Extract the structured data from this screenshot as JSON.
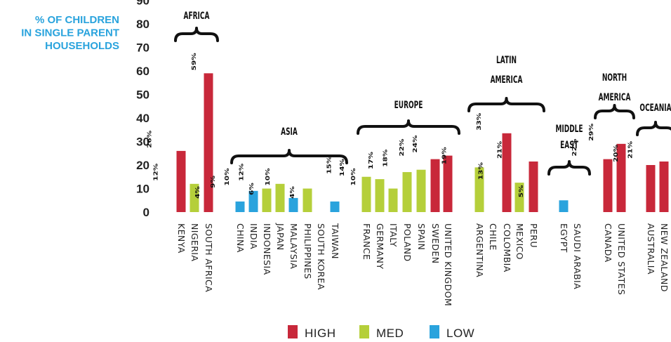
{
  "chart_data": {
    "type": "bar",
    "ylabel": [
      "% OF CHILDREN",
      "IN SINGLE PARENT",
      "HOUSEHOLDS"
    ],
    "ylim": [
      0,
      90
    ],
    "yticks": [
      0,
      10,
      20,
      30,
      40,
      50,
      60,
      70,
      80,
      90
    ],
    "grid": false,
    "legend_position": "bottom",
    "colors": {
      "HIGH": "#c8283a",
      "MED": "#b5cf3a",
      "LOW": "#2aa3dd"
    },
    "legend": [
      {
        "key": "HIGH",
        "label": "HIGH"
      },
      {
        "key": "MED",
        "label": "MED"
      },
      {
        "key": "LOW",
        "label": "LOW"
      }
    ],
    "regions": [
      {
        "name": [
          "AFRICA"
        ],
        "countries": [
          {
            "name": "KENYA",
            "value": 26,
            "label": "26%",
            "level": "HIGH"
          },
          {
            "name": "NIGERIA",
            "value": 12,
            "label": "12%",
            "level": "MED"
          },
          {
            "name": "SOUTH AFRICA",
            "value": 59,
            "label": "59%",
            "level": "HIGH"
          }
        ]
      },
      {
        "name": [
          "ASIA"
        ],
        "countries": [
          {
            "name": "CHINA",
            "value": 4.5,
            "label": "4%",
            "level": "LOW"
          },
          {
            "name": "INDIA",
            "value": 9,
            "label": "9%",
            "level": "LOW"
          },
          {
            "name": "INDONESIA",
            "value": 10,
            "label": "10%",
            "level": "MED"
          },
          {
            "name": "JAPAN",
            "value": 12,
            "label": "12%",
            "level": "MED"
          },
          {
            "name": "MALAYSIA",
            "value": 6,
            "label": "6%",
            "level": "LOW"
          },
          {
            "name": "PHILIPPINES",
            "value": 10,
            "label": "10%",
            "level": "MED"
          },
          {
            "name": "SOUTH KOREA",
            "value": null,
            "label": "",
            "level": ""
          },
          {
            "name": "TAIWAN",
            "value": 4.5,
            "label": "4%",
            "level": "LOW"
          }
        ]
      },
      {
        "name": [
          "EUROPE"
        ],
        "countries": [
          {
            "name": "FRANCE",
            "value": 15,
            "label": "15%",
            "level": "MED"
          },
          {
            "name": "GERMANY",
            "value": 14,
            "label": "14%",
            "level": "MED"
          },
          {
            "name": "ITALY",
            "value": 10,
            "label": "10%",
            "level": "MED"
          },
          {
            "name": "POLAND",
            "value": 17,
            "label": "17%",
            "level": "MED"
          },
          {
            "name": "SPAIN",
            "value": 18,
            "label": "18%",
            "level": "MED"
          },
          {
            "name": "SWEDEN",
            "value": 22.5,
            "label": "22%",
            "level": "HIGH"
          },
          {
            "name": "UNITED KINGDOM",
            "value": 24,
            "label": "24%",
            "level": "HIGH"
          }
        ]
      },
      {
        "name": [
          "LATIN",
          "AMERICA"
        ],
        "countries": [
          {
            "name": "ARGENTINA",
            "value": 19,
            "label": "19%",
            "level": "MED"
          },
          {
            "name": "CHILE",
            "value": null,
            "label": "",
            "level": ""
          },
          {
            "name": "COLOMBIA",
            "value": 33.5,
            "label": "33%",
            "level": "HIGH"
          },
          {
            "name": "MEXICO",
            "value": 12.5,
            "label": "13%",
            "level": "MED"
          },
          {
            "name": "PERU",
            "value": 21.5,
            "label": "21%",
            "level": "HIGH"
          }
        ]
      },
      {
        "name": [
          "MIDDLE",
          "EAST"
        ],
        "countries": [
          {
            "name": "EGYPT",
            "value": 5,
            "label": "5%",
            "level": "LOW"
          },
          {
            "name": "SAUDI ARABIA",
            "value": null,
            "label": "",
            "level": ""
          }
        ]
      },
      {
        "name": [
          "NORTH",
          "AMERICA"
        ],
        "countries": [
          {
            "name": "CANADA",
            "value": 22.5,
            "label": "22%",
            "level": "HIGH"
          },
          {
            "name": "UNITED STATES",
            "value": 29,
            "label": "29%",
            "level": "HIGH"
          }
        ]
      },
      {
        "name": [
          "OCEANIA"
        ],
        "countries": [
          {
            "name": "AUSTRALIA",
            "value": 20,
            "label": "20%",
            "level": "HIGH"
          },
          {
            "name": "NEW ZEALAND",
            "value": 21.5,
            "label": "21%",
            "level": "HIGH"
          }
        ]
      }
    ]
  }
}
